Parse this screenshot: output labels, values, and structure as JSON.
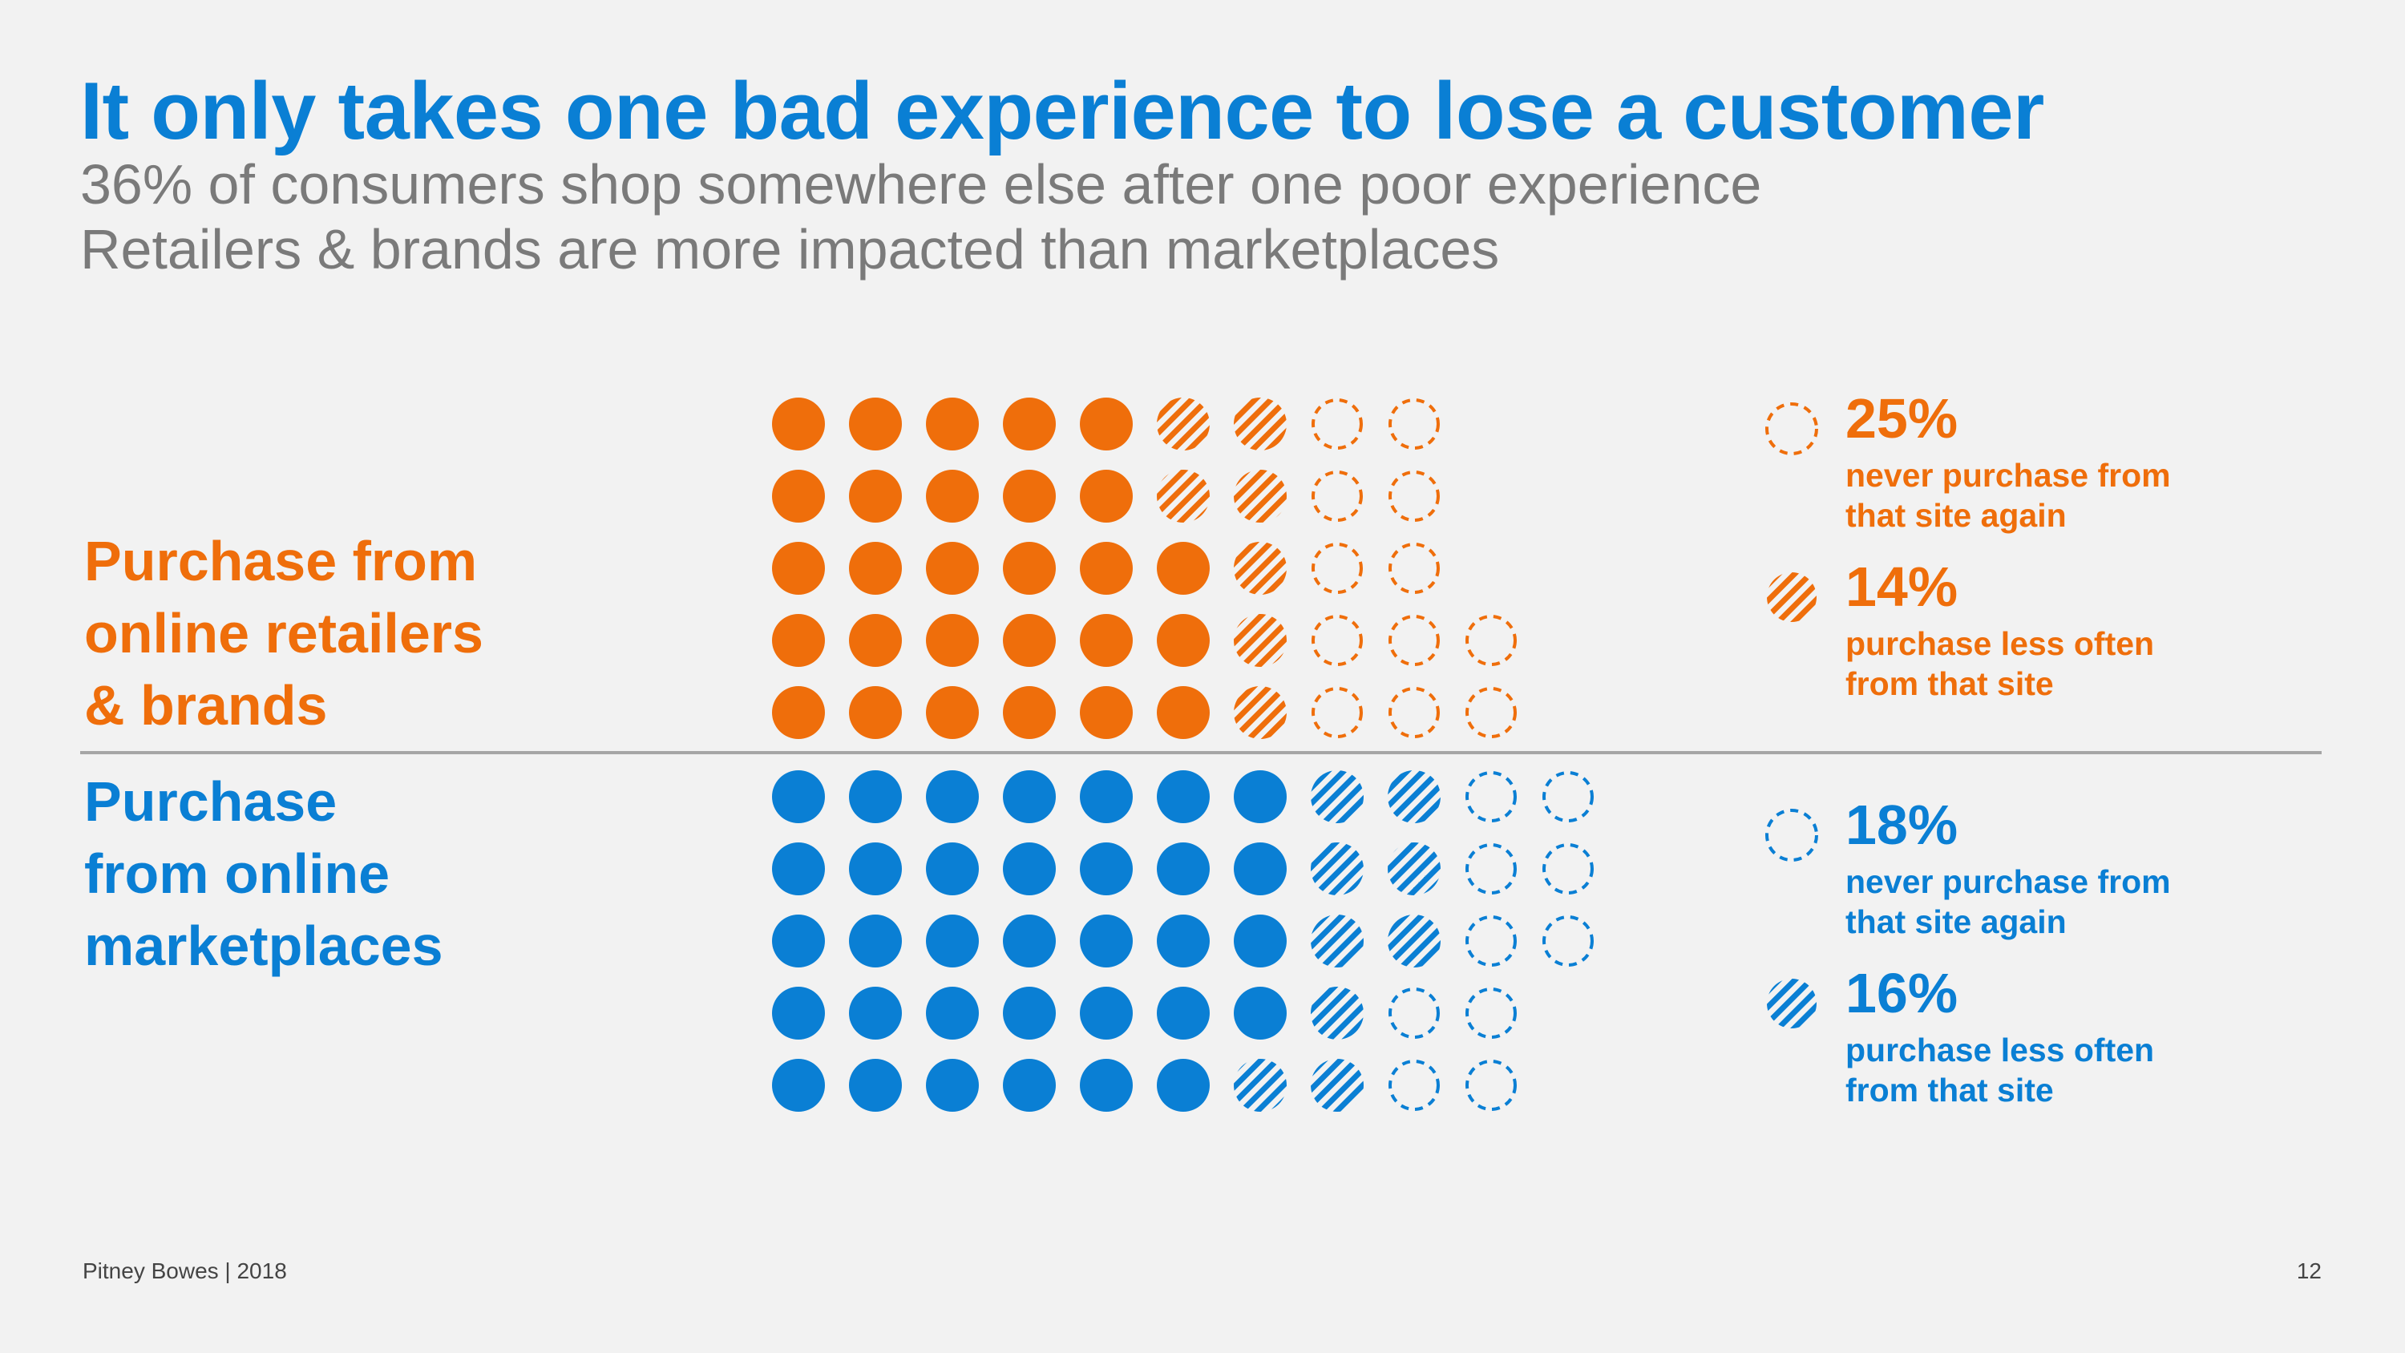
{
  "title": "It only takes one bad experience to lose a customer",
  "subtitle_lines": [
    "36% of consumers shop somewhere else after one poor experience",
    "Retailers & brands are more impacted than marketplaces"
  ],
  "groups": [
    {
      "label_lines": [
        "Purchase from",
        "online retailers",
        "& brands"
      ],
      "color": "#ef6e0b",
      "rows": [
        {
          "solid": 5,
          "striped": 2,
          "dashed": 2
        },
        {
          "solid": 5,
          "striped": 2,
          "dashed": 2
        },
        {
          "solid": 6,
          "striped": 1,
          "dashed": 2
        },
        {
          "solid": 6,
          "striped": 1,
          "dashed": 3
        },
        {
          "solid": 6,
          "striped": 1,
          "dashed": 3
        }
      ],
      "legend": [
        {
          "style": "dashed",
          "pct": "25%",
          "desc_lines": [
            "never purchase from",
            "that site again"
          ]
        },
        {
          "style": "striped",
          "pct": "14%",
          "desc_lines": [
            "purchase less often",
            "from that site"
          ]
        }
      ]
    },
    {
      "label_lines": [
        "Purchase",
        "from online",
        "marketplaces"
      ],
      "color": "#0a7fd4",
      "rows": [
        {
          "solid": 7,
          "striped": 2,
          "dashed": 2
        },
        {
          "solid": 7,
          "striped": 2,
          "dashed": 2
        },
        {
          "solid": 7,
          "striped": 2,
          "dashed": 2
        },
        {
          "solid": 7,
          "striped": 1,
          "dashed": 2
        },
        {
          "solid": 6,
          "striped": 2,
          "dashed": 2
        }
      ],
      "legend": [
        {
          "style": "dashed",
          "pct": "18%",
          "desc_lines": [
            "never purchase from",
            "that site again"
          ]
        },
        {
          "style": "striped",
          "pct": "16%",
          "desc_lines": [
            "purchase less often",
            "from that site"
          ]
        }
      ]
    }
  ],
  "chart_data": {
    "type": "table",
    "title": "It only takes one bad experience to lose a customer",
    "categories": [
      "Purchase from online retailers & brands",
      "Purchase from online marketplaces"
    ],
    "series": [
      {
        "name": "never purchase from that site again",
        "values": [
          25,
          18
        ]
      },
      {
        "name": "purchase less often from that site",
        "values": [
          14,
          16
        ]
      }
    ],
    "unit": "%"
  },
  "footer": {
    "source": "Pitney Bowes | 2018",
    "page_number": "12"
  }
}
